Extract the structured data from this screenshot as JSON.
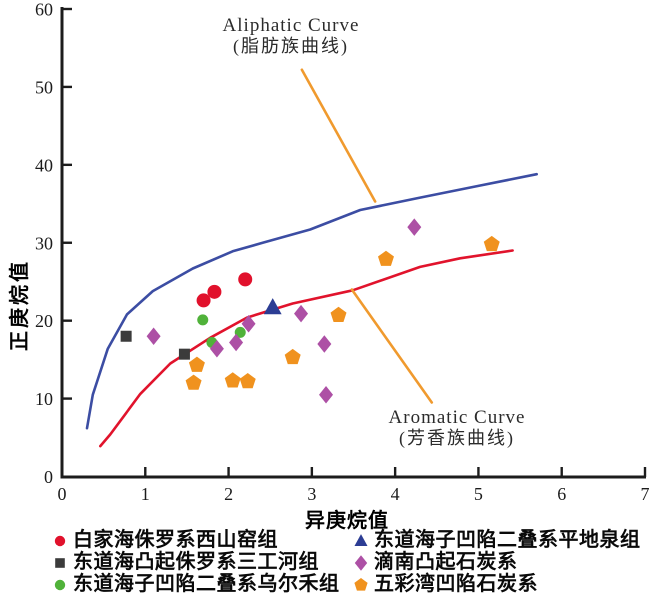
{
  "chart_data": {
    "type": "scatter",
    "title": "",
    "xlabel": "异庚烷值",
    "ylabel": "正庚烷值",
    "xlim": [
      0,
      7
    ],
    "ylim": [
      0,
      60
    ],
    "xticks": [
      0,
      1,
      2,
      3,
      4,
      5,
      6,
      7
    ],
    "yticks": [
      0,
      10,
      20,
      30,
      40,
      50,
      60
    ],
    "grid": false,
    "axis_color": "#1c1c1c",
    "annotations": {
      "aliphatic": {
        "line1": "Aliphatic Curve",
        "line2": "(脂肪族曲线)"
      },
      "aromatic": {
        "line1": "Aromatic Curve",
        "line2": "(芳香族曲线)"
      }
    },
    "curves": [
      {
        "name": "aliphatic-curve",
        "color": "#3c4da3",
        "points": [
          [
            0.3,
            6.2
          ],
          [
            0.37,
            10.5
          ],
          [
            0.55,
            16.4
          ],
          [
            0.78,
            20.8
          ],
          [
            1.09,
            23.8
          ],
          [
            1.57,
            26.7
          ],
          [
            2.05,
            28.9
          ],
          [
            2.41,
            30.0
          ],
          [
            2.98,
            31.7
          ],
          [
            3.58,
            34.2
          ],
          [
            4.3,
            35.8
          ],
          [
            5.0,
            37.3
          ],
          [
            5.7,
            38.8
          ]
        ]
      },
      {
        "name": "aromatic-curve",
        "color": "#e1132c",
        "points": [
          [
            0.46,
            3.9
          ],
          [
            0.58,
            5.4
          ],
          [
            0.94,
            10.6
          ],
          [
            1.3,
            14.5
          ],
          [
            1.78,
            17.8
          ],
          [
            2.22,
            20.4
          ],
          [
            2.77,
            22.2
          ],
          [
            3.49,
            23.9
          ],
          [
            4.3,
            26.9
          ],
          [
            4.78,
            28.0
          ],
          [
            5.41,
            29.0
          ]
        ]
      }
    ],
    "leader_lines": [
      {
        "name": "aliphatic-leader-line",
        "color": "#f09a2e",
        "points": [
          [
            2.88,
            52.2
          ],
          [
            3.76,
            35.3
          ]
        ]
      },
      {
        "name": "aromatic-leader-line",
        "color": "#f09a2e",
        "points": [
          [
            3.48,
            24.0
          ],
          [
            4.44,
            9.5
          ]
        ]
      }
    ],
    "series": [
      {
        "name": "白家海侏罗系西山窑组",
        "marker": "circle",
        "color": "#e1112c",
        "size": 7,
        "points": [
          [
            1.7,
            22.6
          ],
          [
            1.83,
            23.7
          ],
          [
            2.2,
            25.3
          ]
        ]
      },
      {
        "name": "东道海凸起侏罗系三工河组",
        "marker": "square",
        "color": "#3b3b3b",
        "size": 5.5,
        "points": [
          [
            0.77,
            18.0
          ],
          [
            1.47,
            15.7
          ]
        ]
      },
      {
        "name": "东道海子凹陷二叠系乌尔禾组",
        "marker": "circle",
        "color": "#50b23a",
        "size": 5.5,
        "points": [
          [
            1.69,
            20.1
          ],
          [
            2.14,
            18.5
          ],
          [
            1.8,
            17.2
          ]
        ]
      },
      {
        "name": "东道海子凹陷二叠系平地泉组",
        "marker": "triangle",
        "color": "#2c3d94",
        "size": 8.5,
        "points": [
          [
            2.53,
            21.7
          ]
        ]
      },
      {
        "name": "滴南凸起石炭系",
        "marker": "diamond",
        "color": "#ad50a5",
        "size": 7,
        "points": [
          [
            1.1,
            18.0
          ],
          [
            1.86,
            16.4
          ],
          [
            2.09,
            17.2
          ],
          [
            2.24,
            19.6
          ],
          [
            2.87,
            20.9
          ],
          [
            3.15,
            17.0
          ],
          [
            3.17,
            10.5
          ],
          [
            4.23,
            32.0
          ]
        ]
      },
      {
        "name": "五彩湾凹陷石炭系",
        "marker": "pentagon",
        "color": "#f0921e",
        "size": 7.5,
        "points": [
          [
            1.62,
            14.3
          ],
          [
            1.58,
            12.0
          ],
          [
            2.05,
            12.3
          ],
          [
            2.23,
            12.2
          ],
          [
            2.77,
            15.3
          ],
          [
            3.32,
            20.7
          ],
          [
            3.89,
            27.9
          ],
          [
            5.16,
            29.8
          ]
        ]
      }
    ],
    "legend": {
      "position": "bottom",
      "columns": 2,
      "items": [
        {
          "label": "白家海侏罗系西山窑组",
          "marker": "circle",
          "color": "#e1112c"
        },
        {
          "label": "东道海子凹陷二叠系平地泉组",
          "marker": "triangle",
          "color": "#2c3d94"
        },
        {
          "label": "东道海凸起侏罗系三工河组",
          "marker": "square",
          "color": "#3b3b3b"
        },
        {
          "label": "滴南凸起石炭系",
          "marker": "diamond",
          "color": "#ad50a5"
        },
        {
          "label": "东道海子凹陷二叠系乌尔禾组",
          "marker": "circle",
          "color": "#50b23a"
        },
        {
          "label": "五彩湾凹陷石炭系",
          "marker": "pentagon",
          "color": "#f0921e"
        }
      ]
    }
  }
}
